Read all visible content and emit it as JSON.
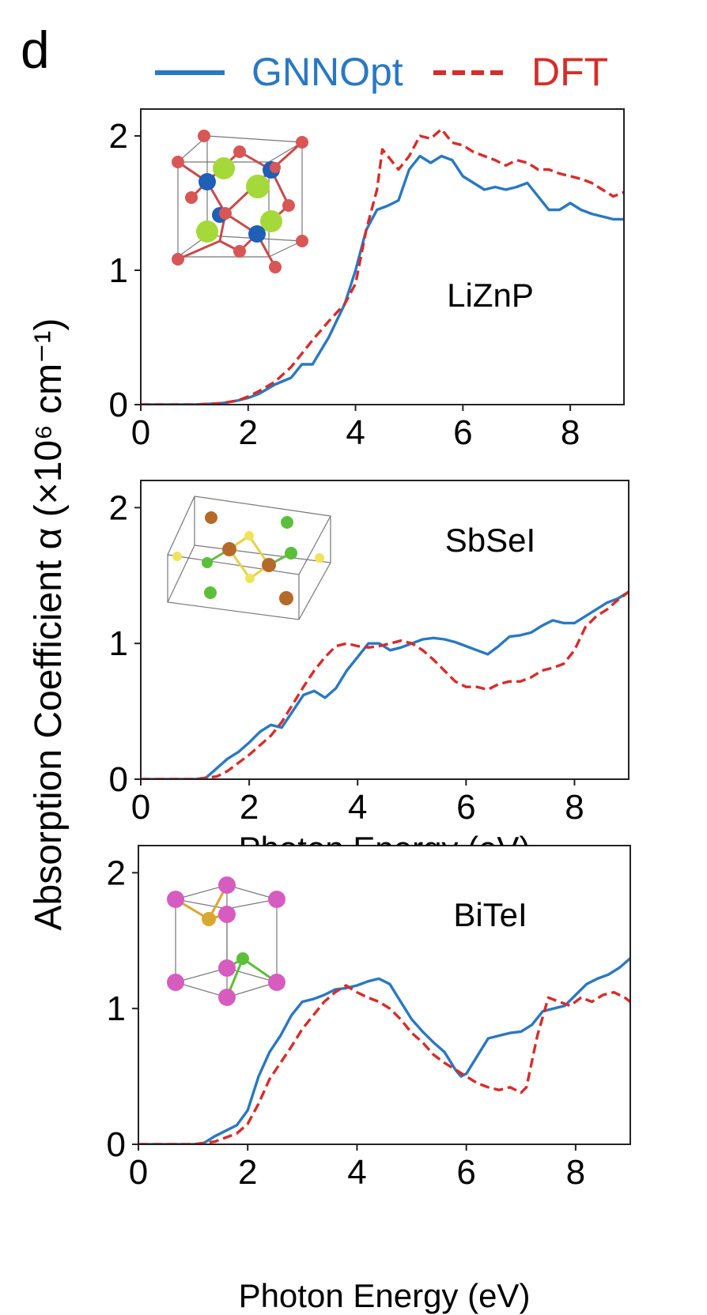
{
  "panel_letter": "d",
  "legend": {
    "gnn_label": "GNNOpt",
    "dft_label": "DFT",
    "gnn_color": "#2a78c2",
    "dft_color": "#d62d2a"
  },
  "ylabel": "Absorption Coefficient α (×10⁶ cm⁻¹)",
  "xlabel": "Photon Energy (eV)",
  "chart_data": [
    {
      "type": "line",
      "title": "LiZnP",
      "xlabel": "",
      "ylabel": "Absorption Coefficient α (×10⁶ cm⁻¹)",
      "xlim": [
        0,
        9
      ],
      "ylim": [
        0,
        2.2
      ],
      "xticks": [
        0,
        2,
        4,
        6,
        8
      ],
      "yticks": [
        0,
        1,
        2
      ],
      "grid": false,
      "legend_position": "top-center",
      "series": [
        {
          "name": "GNNOpt",
          "style": "solid",
          "color": "#2a78c2",
          "x": [
            0,
            1.0,
            1.5,
            1.8,
            2.0,
            2.2,
            2.5,
            2.8,
            3.0,
            3.2,
            3.5,
            3.8,
            4.0,
            4.2,
            4.4,
            4.6,
            4.8,
            5.0,
            5.2,
            5.4,
            5.6,
            5.8,
            6.0,
            6.2,
            6.4,
            6.6,
            6.8,
            7.0,
            7.2,
            7.4,
            7.6,
            7.8,
            8.0,
            8.2,
            8.4,
            8.6,
            8.8,
            9.0
          ],
          "y": [
            0,
            0,
            0.01,
            0.03,
            0.05,
            0.08,
            0.15,
            0.2,
            0.3,
            0.3,
            0.5,
            0.75,
            1.0,
            1.3,
            1.45,
            1.48,
            1.52,
            1.75,
            1.85,
            1.8,
            1.85,
            1.82,
            1.7,
            1.65,
            1.6,
            1.62,
            1.6,
            1.62,
            1.65,
            1.55,
            1.45,
            1.45,
            1.5,
            1.45,
            1.42,
            1.4,
            1.38,
            1.38
          ]
        },
        {
          "name": "DFT",
          "style": "dashed",
          "color": "#d62d2a",
          "x": [
            0,
            1.0,
            1.5,
            1.8,
            2.0,
            2.2,
            2.5,
            2.8,
            3.0,
            3.2,
            3.5,
            3.8,
            4.0,
            4.2,
            4.4,
            4.5,
            4.6,
            4.8,
            5.0,
            5.2,
            5.4,
            5.6,
            5.8,
            6.0,
            6.2,
            6.4,
            6.6,
            6.8,
            7.0,
            7.2,
            7.4,
            7.6,
            7.8,
            8.0,
            8.2,
            8.4,
            8.6,
            8.8,
            9.0
          ],
          "y": [
            0,
            0,
            0.01,
            0.03,
            0.06,
            0.1,
            0.17,
            0.28,
            0.38,
            0.48,
            0.62,
            0.75,
            0.9,
            1.3,
            1.6,
            1.9,
            1.85,
            1.75,
            1.85,
            2.0,
            1.98,
            2.05,
            1.95,
            1.93,
            1.88,
            1.85,
            1.82,
            1.78,
            1.82,
            1.8,
            1.75,
            1.75,
            1.72,
            1.7,
            1.68,
            1.65,
            1.6,
            1.55,
            1.58
          ]
        }
      ]
    },
    {
      "type": "line",
      "title": "SbSeI",
      "xlabel": "Photon Energy (eV)",
      "ylabel": "Absorption Coefficient α (×10⁶ cm⁻¹)",
      "xlim": [
        0,
        9
      ],
      "ylim": [
        0,
        2.2
      ],
      "xticks": [
        0,
        2,
        4,
        6,
        8
      ],
      "yticks": [
        0,
        1,
        2
      ],
      "grid": false,
      "series": [
        {
          "name": "GNNOpt",
          "style": "solid",
          "color": "#2a78c2",
          "x": [
            0,
            1.0,
            1.2,
            1.4,
            1.6,
            1.8,
            2.0,
            2.2,
            2.4,
            2.6,
            2.8,
            3.0,
            3.2,
            3.4,
            3.6,
            3.8,
            4.0,
            4.2,
            4.4,
            4.6,
            4.8,
            5.0,
            5.2,
            5.4,
            5.6,
            5.8,
            6.0,
            6.2,
            6.4,
            6.6,
            6.8,
            7.0,
            7.2,
            7.4,
            7.6,
            7.8,
            8.0,
            8.2,
            8.4,
            8.6,
            8.8,
            9.0
          ],
          "y": [
            0,
            0,
            0.01,
            0.08,
            0.15,
            0.2,
            0.27,
            0.35,
            0.4,
            0.38,
            0.5,
            0.62,
            0.65,
            0.6,
            0.67,
            0.8,
            0.9,
            1.0,
            1.0,
            0.95,
            0.97,
            1.0,
            1.03,
            1.04,
            1.03,
            1.01,
            0.98,
            0.95,
            0.92,
            0.98,
            1.05,
            1.06,
            1.08,
            1.13,
            1.17,
            1.15,
            1.15,
            1.2,
            1.25,
            1.3,
            1.33,
            1.38
          ]
        },
        {
          "name": "DFT",
          "style": "dashed",
          "color": "#d62d2a",
          "x": [
            0,
            1.0,
            1.4,
            1.6,
            1.8,
            2.0,
            2.2,
            2.4,
            2.6,
            2.8,
            3.0,
            3.2,
            3.4,
            3.6,
            3.8,
            4.0,
            4.2,
            4.4,
            4.6,
            4.8,
            5.0,
            5.2,
            5.4,
            5.6,
            5.8,
            6.0,
            6.2,
            6.4,
            6.6,
            6.8,
            7.0,
            7.2,
            7.4,
            7.6,
            7.8,
            8.0,
            8.2,
            8.4,
            8.6,
            8.8,
            9.0
          ],
          "y": [
            0,
            0,
            0.02,
            0.06,
            0.12,
            0.18,
            0.25,
            0.32,
            0.42,
            0.55,
            0.68,
            0.8,
            0.9,
            0.98,
            1.0,
            0.98,
            0.97,
            0.98,
            1.0,
            1.02,
            1.0,
            0.95,
            0.88,
            0.8,
            0.72,
            0.68,
            0.68,
            0.66,
            0.7,
            0.72,
            0.72,
            0.75,
            0.8,
            0.82,
            0.85,
            0.95,
            1.12,
            1.2,
            1.25,
            1.32,
            1.38
          ]
        }
      ]
    },
    {
      "type": "line",
      "title": "BiTeI",
      "xlabel": "Photon Energy (eV)",
      "ylabel": "Absorption Coefficient α (×10⁶ cm⁻¹)",
      "xlim": [
        0,
        9
      ],
      "ylim": [
        0,
        2.2
      ],
      "xticks": [
        0,
        2,
        4,
        6,
        8
      ],
      "yticks": [
        0,
        1,
        2
      ],
      "grid": false,
      "series": [
        {
          "name": "GNNOpt",
          "style": "solid",
          "color": "#2a78c2",
          "x": [
            0,
            1.0,
            1.2,
            1.4,
            1.6,
            1.8,
            2.0,
            2.2,
            2.4,
            2.6,
            2.8,
            3.0,
            3.2,
            3.4,
            3.6,
            3.8,
            4.0,
            4.2,
            4.4,
            4.6,
            4.8,
            5.0,
            5.2,
            5.4,
            5.6,
            5.8,
            5.9,
            6.0,
            6.2,
            6.4,
            6.6,
            6.8,
            7.0,
            7.2,
            7.4,
            7.6,
            7.8,
            8.0,
            8.2,
            8.4,
            8.6,
            8.8,
            9.0
          ],
          "y": [
            0,
            0,
            0.01,
            0.06,
            0.1,
            0.14,
            0.25,
            0.5,
            0.68,
            0.8,
            0.95,
            1.05,
            1.07,
            1.1,
            1.14,
            1.15,
            1.17,
            1.2,
            1.22,
            1.18,
            1.05,
            0.92,
            0.83,
            0.75,
            0.68,
            0.55,
            0.5,
            0.52,
            0.65,
            0.78,
            0.8,
            0.82,
            0.83,
            0.88,
            0.98,
            1.0,
            1.02,
            1.1,
            1.18,
            1.22,
            1.25,
            1.3,
            1.37
          ]
        },
        {
          "name": "DFT",
          "style": "dashed",
          "color": "#d62d2a",
          "x": [
            0,
            1.0,
            1.4,
            1.6,
            1.8,
            2.0,
            2.2,
            2.4,
            2.6,
            2.8,
            3.0,
            3.2,
            3.4,
            3.6,
            3.8,
            4.0,
            4.2,
            4.4,
            4.6,
            4.8,
            5.0,
            5.2,
            5.4,
            5.6,
            5.8,
            6.0,
            6.2,
            6.4,
            6.6,
            6.8,
            7.0,
            7.1,
            7.3,
            7.5,
            7.7,
            7.9,
            8.1,
            8.3,
            8.5,
            8.7,
            8.9,
            9.0
          ],
          "y": [
            0,
            0,
            0.02,
            0.05,
            0.08,
            0.15,
            0.3,
            0.48,
            0.6,
            0.72,
            0.85,
            0.95,
            1.05,
            1.12,
            1.17,
            1.12,
            1.08,
            1.05,
            1.0,
            0.92,
            0.82,
            0.75,
            0.66,
            0.6,
            0.55,
            0.5,
            0.45,
            0.42,
            0.4,
            0.42,
            0.38,
            0.42,
            0.8,
            1.08,
            1.05,
            1.02,
            1.08,
            1.05,
            1.1,
            1.12,
            1.08,
            1.05
          ]
        }
      ]
    }
  ]
}
